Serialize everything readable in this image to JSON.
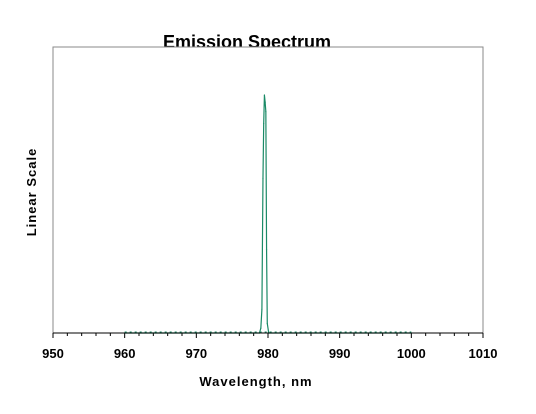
{
  "chart_data": {
    "type": "line",
    "title": "Emission Spectrum",
    "xlabel": "Wavelength, nm",
    "ylabel": "Linear Scale",
    "xlim": [
      950,
      1010
    ],
    "ylim": [
      0,
      1
    ],
    "x_ticks": [
      "950",
      "960",
      "970",
      "980",
      "990",
      "1000",
      "1010"
    ],
    "grid": false,
    "legend": "none",
    "series_color": "#1a8a66",
    "series": [
      {
        "x": [
          960,
          978.8,
          979.0,
          979.15,
          979.3,
          979.4,
          979.5,
          979.6,
          979.7,
          979.8,
          979.9,
          980.1,
          1000
        ],
        "y": [
          0.0,
          0.0,
          0.02,
          0.1,
          0.65,
          0.88,
          1.0,
          0.97,
          0.93,
          0.35,
          0.04,
          0.0,
          0.0
        ]
      }
    ]
  }
}
